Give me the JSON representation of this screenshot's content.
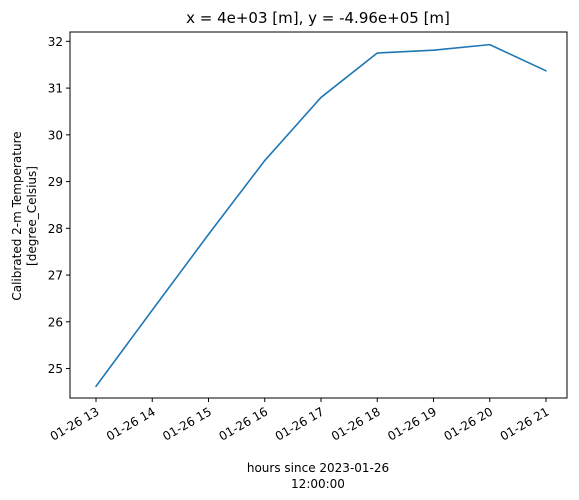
{
  "chart_data": {
    "type": "line",
    "title": "x = 4e+03 [m], y = -4.96e+05 [m]",
    "ylabel_line1": "Calibrated 2-m Temperature",
    "ylabel_line2": "[degree_Celsius]",
    "xlabel_line1": "hours since 2023-01-26",
    "xlabel_line2": "12:00:00",
    "x": [
      "01-26 13",
      "01-26 14",
      "01-26 15",
      "01-26 16",
      "01-26 17",
      "01-26 18",
      "01-26 19",
      "01-26 20",
      "01-26 21"
    ],
    "x_tick_labels": [
      "01-26 13",
      "01-26 14",
      "01-26 15",
      "01-26 16",
      "01-26 17",
      "01-26 18",
      "01-26 19",
      "01-26 20",
      "01-26 21"
    ],
    "y_ticks": [
      25,
      26,
      27,
      28,
      29,
      30,
      31,
      32
    ],
    "ylim": [
      24.37,
      32.2
    ],
    "series": [
      {
        "values": [
          24.62,
          26.25,
          27.87,
          29.45,
          30.8,
          31.75,
          31.81,
          31.93,
          31.37
        ],
        "color": "#1f77b4"
      }
    ],
    "grid": false,
    "legend": "none"
  }
}
